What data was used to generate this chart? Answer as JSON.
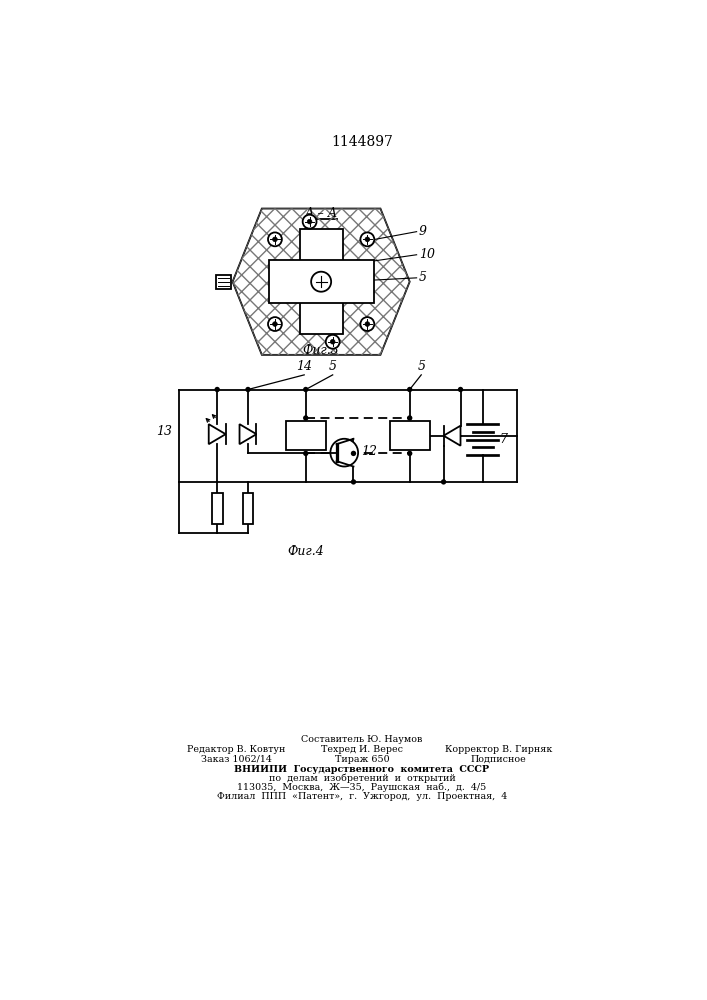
{
  "title": "1144897",
  "fig3_label": "А – А",
  "fig3_caption": "Фиг.3",
  "fig4_caption": "Фиг.4",
  "label_9": "9",
  "label_10": "10",
  "label_5a": "5",
  "label_13": "13",
  "label_14": "14",
  "label_5b": "5",
  "label_5c": "5",
  "label_12": "12",
  "label_7": "7",
  "footer_line1": "Составитель Ю. Наумов",
  "footer_line2_left": "Редактор В. Ковтун",
  "footer_line2_mid": "Техред И. Верес",
  "footer_line2_right": "Корректор В. Гирняк",
  "footer_line3_left": "Заказ 1062/14",
  "footer_line3_mid": "Тираж 650",
  "footer_line3_right": "Подписное",
  "footer_vnipi": "ВНИИПИ  Государственного  комитета  СССР",
  "footer_vnipi2": "по  делам  изобретений  и  открытий",
  "footer_addr": "113035,  Москва,  Ж—35,  Раушская  наб.,  д.  4/5",
  "footer_filial": "Филиал  ППП  «Патент»,  г.  Ужгород,  ул.  Проектная,  4",
  "line_color": "#000000",
  "bg_color": "#ffffff"
}
